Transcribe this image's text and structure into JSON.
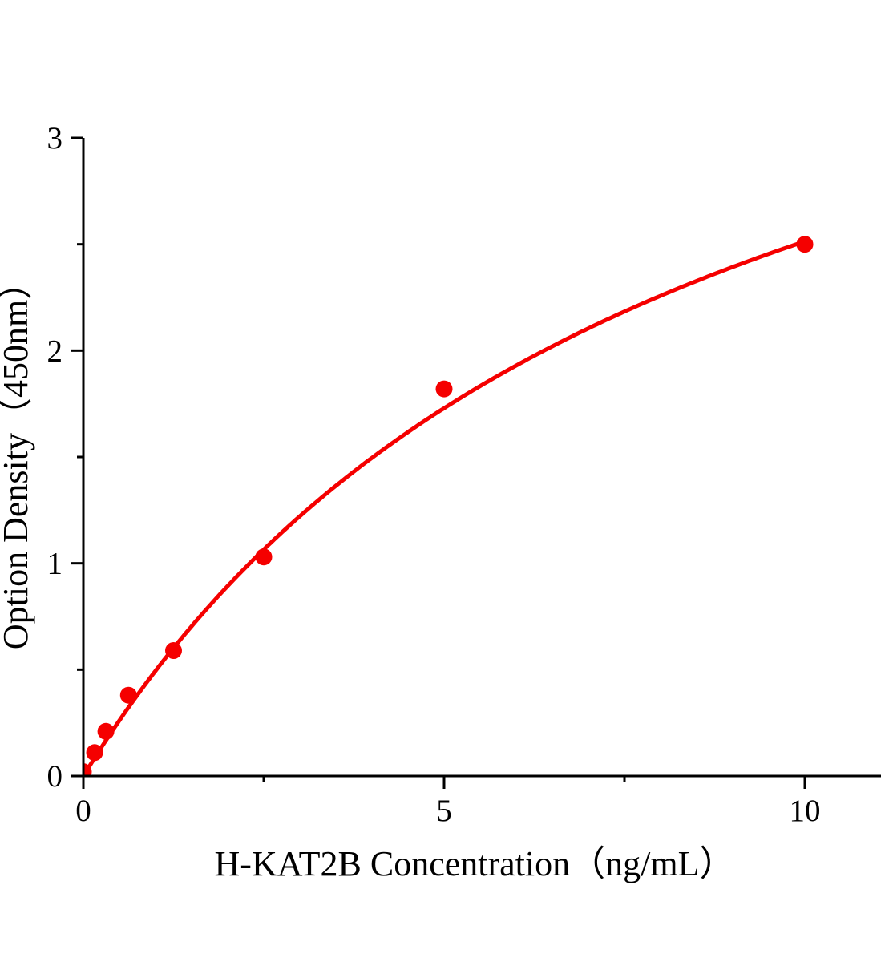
{
  "chart_data": {
    "type": "scatter",
    "title": "",
    "xlabel": "H-KAT2B Concentration（ng/mL）",
    "ylabel": "Option Density（450nm）",
    "xlim": [
      0,
      11.05
    ],
    "ylim": [
      0,
      3
    ],
    "x_major_ticks": [
      0,
      5,
      10
    ],
    "x_minor_ticks": [
      2.5,
      7.5
    ],
    "y_major_ticks": [
      0,
      1,
      2,
      3
    ],
    "y_minor_ticks": [
      0.5,
      1.5,
      2.5
    ],
    "points": [
      {
        "x": 0,
        "y": 0.02
      },
      {
        "x": 0.156,
        "y": 0.11
      },
      {
        "x": 0.3125,
        "y": 0.21
      },
      {
        "x": 0.625,
        "y": 0.38
      },
      {
        "x": 1.25,
        "y": 0.59
      },
      {
        "x": 2.5,
        "y": 1.03
      },
      {
        "x": 5,
        "y": 1.82
      },
      {
        "x": 10,
        "y": 2.5
      }
    ],
    "fit_curve": {
      "model": "y = a*x/(b+x)",
      "a": 4.6,
      "b": 8.3,
      "x_start": 0,
      "x_end": 10
    },
    "grid": false,
    "legend": null,
    "colors": {
      "series": "#f50000",
      "axis": "#000000",
      "background": "#ffffff"
    }
  }
}
